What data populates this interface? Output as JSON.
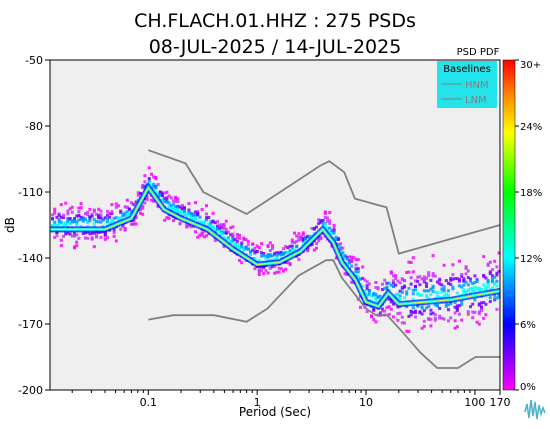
{
  "chart_data": {
    "type": "heatmap",
    "title": "CH.FLACH.01.HHZ : 275 PSDs",
    "subtitle": "08-JUL-2025 / 14-JUL-2025",
    "xlabel": "Period (Sec)",
    "ylabel": "dB",
    "x_scale": "log",
    "xlim": [
      0.0125,
      170
    ],
    "ylim": [
      -200,
      -50
    ],
    "x_ticks": [
      "0.1",
      "1",
      "10",
      "100",
      "170"
    ],
    "x_tick_values": [
      0.1,
      1,
      10,
      100,
      170
    ],
    "y_ticks": [
      "-50",
      "-80",
      "-110",
      "-140",
      "-170",
      "-200"
    ],
    "y_tick_values": [
      -50,
      -80,
      -110,
      -140,
      -170,
      -200
    ],
    "grid": false,
    "legend": {
      "title": "Baselines",
      "placement": "top-right",
      "entries": [
        {
          "label": "HNM",
          "color": "#808080"
        },
        {
          "label": "LNM",
          "color": "#808080"
        }
      ]
    },
    "colorbar": {
      "title": "PSD PDF",
      "ticks": [
        "30+",
        "24%",
        "18%",
        "12%",
        "6%",
        "0%"
      ],
      "tick_values": [
        30,
        24,
        18,
        12,
        6,
        0
      ],
      "colors": [
        "#ff00ff",
        "#0000ff",
        "#00ffff",
        "#00ff00",
        "#ffff00",
        "#ff8000",
        "#ff0000"
      ]
    },
    "series": [
      {
        "name": "HNM",
        "x": [
          0.1,
          0.22,
          0.32,
          0.8,
          3.8,
          4.6,
          6.3,
          7.9,
          15.4,
          20,
          170
        ],
        "y": [
          -91,
          -97,
          -110,
          -120,
          -98,
          -96,
          -101,
          -113,
          -117,
          -138,
          -125
        ]
      },
      {
        "name": "LNM",
        "x": [
          0.1,
          0.17,
          0.4,
          0.8,
          1.24,
          2.4,
          4.3,
          5,
          6,
          10,
          12.4,
          15.6,
          21.9,
          31.6,
          45,
          70,
          101,
          154,
          170
        ],
        "y": [
          -168,
          -166,
          -166,
          -169,
          -163,
          -148,
          -141,
          -141,
          -149,
          -163,
          -166,
          -166,
          -174,
          -183,
          -190,
          -190,
          -185,
          -185,
          -185
        ]
      }
    ],
    "mode_curve": {
      "x": [
        0.0125,
        0.02,
        0.04,
        0.07,
        0.1,
        0.14,
        0.2,
        0.35,
        0.6,
        1.0,
        1.6,
        2.5,
        4.0,
        5.0,
        6.0,
        8.0,
        10.0,
        13.0,
        16.0,
        20.0,
        35.0,
        60.0,
        100.0,
        170.0
      ],
      "y": [
        -127,
        -127,
        -127,
        -122,
        -108,
        -118,
        -122,
        -127,
        -136,
        -143,
        -142,
        -137,
        -127,
        -133,
        -142,
        -150,
        -160,
        -162,
        -156,
        -161,
        -160,
        -159,
        -157,
        -155
      ]
    }
  }
}
